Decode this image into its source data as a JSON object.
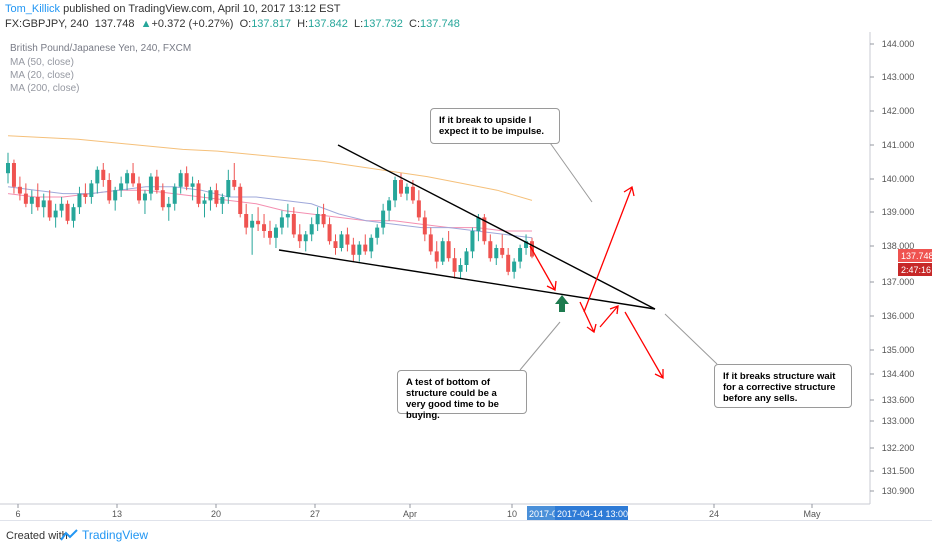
{
  "header": {
    "author": "Tom_Killick",
    "published_text": " published on TradingView.com, April 10, 2017 13:12 EST",
    "symbol": "FX:GBPJPY, 240",
    "last": "137.748",
    "change": "+0.372 (+0.27%)",
    "open_label": "O:",
    "open": "137.817",
    "high_label": "H:",
    "high": "137.842",
    "low_label": "L:",
    "low": "137.732",
    "close_label": "C:",
    "close": "137.748"
  },
  "legend": {
    "title": "British Pound/Japanese Yen, 240, FXCM",
    "ma50": "MA (50, close)",
    "ma20": "MA (20, close)",
    "ma200": "MA (200, close)"
  },
  "annotations": {
    "upside": "If it break to upside I expect it to be impulse.",
    "test": "A test of bottom of structure could be a very good time to be buying.",
    "breaks": "If it breaks structure wait for a corrective structure before any sells."
  },
  "price_labels": {
    "last_price": "137.748",
    "countdown": "2:47:16"
  },
  "crosshair": {
    "date_partial": "2017-0",
    "datetime": "2017-04-14 13:00:00"
  },
  "footer": {
    "created": "Created with",
    "brand": "TradingView"
  },
  "colors": {
    "up": "#26a69a",
    "down": "#ef5350",
    "ma50": "#f48fb1",
    "ma20": "#9fa8da",
    "ma200": "#f5c07a",
    "arrow": "#ff0000",
    "buy_arrow": "#1e7b4f",
    "accent": "#2196f3"
  },
  "chart_data": {
    "type": "candlestick",
    "instrument": "GBPJPY",
    "timeframe": "240",
    "y_range": [
      130.7,
      144.2
    ],
    "y_ticks": [
      "144.000",
      "143.000",
      "142.000",
      "141.000",
      "140.000",
      "139.000",
      "138.000",
      "137.000",
      "136.000",
      "135.000",
      "134.400",
      "133.600",
      "133.000",
      "132.200",
      "131.500",
      "130.900"
    ],
    "x_ticks": [
      "6",
      "13",
      "20",
      "27",
      "Apr",
      "10",
      "24",
      "May"
    ],
    "candles": [
      [
        140.2,
        140.8,
        139.9,
        140.5
      ],
      [
        140.5,
        140.6,
        139.6,
        139.8
      ],
      [
        139.8,
        140.1,
        139.4,
        139.6
      ],
      [
        139.6,
        139.9,
        139.2,
        139.3
      ],
      [
        139.3,
        139.7,
        139.0,
        139.5
      ],
      [
        139.5,
        139.9,
        139.1,
        139.2
      ],
      [
        139.2,
        139.6,
        138.9,
        139.4
      ],
      [
        139.4,
        139.7,
        138.8,
        138.9
      ],
      [
        138.9,
        139.3,
        138.6,
        139.1
      ],
      [
        139.1,
        139.5,
        138.9,
        139.3
      ],
      [
        139.3,
        139.4,
        138.7,
        138.8
      ],
      [
        138.8,
        139.3,
        138.6,
        139.2
      ],
      [
        139.2,
        139.8,
        139.0,
        139.6
      ],
      [
        139.6,
        139.9,
        139.3,
        139.5
      ],
      [
        139.5,
        140.0,
        139.3,
        139.9
      ],
      [
        139.9,
        140.4,
        139.6,
        140.3
      ],
      [
        140.3,
        140.5,
        139.8,
        140.0
      ],
      [
        140.0,
        140.2,
        139.3,
        139.4
      ],
      [
        139.4,
        139.8,
        139.1,
        139.7
      ],
      [
        139.7,
        140.1,
        139.5,
        139.9
      ],
      [
        139.9,
        140.3,
        139.7,
        140.2
      ],
      [
        140.2,
        140.5,
        139.8,
        139.9
      ],
      [
        139.9,
        140.1,
        139.3,
        139.4
      ],
      [
        139.4,
        139.7,
        139.0,
        139.6
      ],
      [
        139.6,
        140.2,
        139.4,
        140.1
      ],
      [
        140.1,
        140.3,
        139.6,
        139.7
      ],
      [
        139.7,
        139.9,
        139.1,
        139.2
      ],
      [
        139.2,
        139.5,
        138.8,
        139.3
      ],
      [
        139.3,
        139.9,
        139.1,
        139.8
      ],
      [
        139.8,
        140.3,
        139.6,
        140.2
      ],
      [
        140.2,
        140.4,
        139.7,
        139.8
      ],
      [
        139.8,
        140.1,
        139.4,
        139.9
      ],
      [
        139.9,
        140.0,
        139.2,
        139.3
      ],
      [
        139.3,
        139.6,
        138.9,
        139.4
      ],
      [
        139.4,
        139.8,
        139.1,
        139.7
      ],
      [
        139.7,
        139.9,
        139.2,
        139.3
      ],
      [
        139.3,
        139.6,
        139.0,
        139.5
      ],
      [
        139.5,
        140.3,
        139.3,
        140.0
      ],
      [
        140.0,
        140.5,
        139.7,
        139.8
      ],
      [
        139.8,
        139.9,
        138.9,
        139.0
      ],
      [
        139.0,
        139.3,
        138.4,
        138.6
      ],
      [
        138.6,
        139.0,
        137.8,
        138.8
      ],
      [
        138.8,
        139.2,
        138.5,
        138.7
      ],
      [
        138.7,
        139.0,
        138.3,
        138.5
      ],
      [
        138.5,
        138.8,
        138.1,
        138.3
      ],
      [
        138.3,
        138.7,
        138.0,
        138.6
      ],
      [
        138.6,
        139.1,
        138.4,
        138.9
      ],
      [
        138.9,
        139.3,
        138.6,
        139.0
      ],
      [
        139.0,
        139.2,
        138.3,
        138.4
      ],
      [
        138.4,
        138.7,
        138.0,
        138.2
      ],
      [
        138.2,
        138.5,
        137.9,
        138.4
      ],
      [
        138.4,
        138.9,
        138.2,
        138.7
      ],
      [
        138.7,
        139.2,
        138.5,
        139.0
      ],
      [
        139.0,
        139.3,
        138.6,
        138.7
      ],
      [
        138.7,
        138.9,
        138.1,
        138.2
      ],
      [
        138.2,
        138.4,
        137.8,
        138.0
      ],
      [
        138.0,
        138.5,
        137.9,
        138.4
      ],
      [
        138.4,
        138.6,
        137.9,
        138.1
      ],
      [
        138.1,
        138.3,
        137.6,
        137.8
      ],
      [
        137.8,
        138.2,
        137.6,
        138.1
      ],
      [
        138.1,
        138.4,
        137.8,
        137.9
      ],
      [
        137.9,
        138.4,
        137.7,
        138.3
      ],
      [
        138.3,
        138.7,
        138.1,
        138.6
      ],
      [
        138.6,
        139.3,
        138.4,
        139.1
      ],
      [
        139.1,
        139.5,
        138.8,
        139.4
      ],
      [
        139.4,
        140.1,
        139.2,
        140.0
      ],
      [
        140.0,
        140.2,
        139.5,
        139.6
      ],
      [
        139.6,
        139.9,
        139.4,
        139.8
      ],
      [
        139.8,
        140.0,
        139.3,
        139.4
      ],
      [
        139.4,
        139.7,
        138.8,
        138.9
      ],
      [
        138.9,
        139.1,
        138.2,
        138.4
      ],
      [
        138.4,
        138.6,
        137.8,
        137.9
      ],
      [
        137.9,
        138.2,
        137.4,
        137.6
      ],
      [
        137.6,
        138.3,
        137.5,
        138.2
      ],
      [
        138.2,
        138.5,
        137.6,
        137.7
      ],
      [
        137.7,
        138.0,
        137.1,
        137.3
      ],
      [
        137.3,
        137.7,
        137.1,
        137.5
      ],
      [
        137.5,
        138.0,
        137.3,
        137.9
      ],
      [
        137.9,
        138.6,
        137.7,
        138.5
      ],
      [
        138.5,
        139.0,
        138.2,
        138.9
      ],
      [
        138.9,
        139.0,
        138.1,
        138.2
      ],
      [
        138.2,
        138.4,
        137.6,
        137.7
      ],
      [
        137.7,
        138.1,
        137.5,
        138.0
      ],
      [
        138.0,
        138.4,
        137.7,
        137.8
      ],
      [
        137.8,
        138.0,
        137.2,
        137.3
      ],
      [
        137.3,
        137.7,
        137.1,
        137.6
      ],
      [
        137.6,
        138.1,
        137.4,
        138.0
      ],
      [
        138.0,
        138.4,
        137.8,
        138.2
      ],
      [
        138.2,
        138.3,
        137.7,
        137.748
      ]
    ],
    "ma20": [
      139.8,
      139.7,
      139.6,
      139.6,
      139.7,
      139.8,
      139.8,
      139.7,
      139.5,
      139.5,
      139.4,
      139.3,
      139.0,
      138.8,
      138.7,
      138.6,
      138.6,
      138.5,
      138.4,
      138.3
    ],
    "ma50": [
      139.6,
      139.5,
      139.5,
      139.6,
      139.7,
      139.7,
      139.6,
      139.5,
      139.4,
      139.3,
      139.1,
      139.0,
      138.9,
      138.8,
      138.8,
      138.7,
      138.6,
      138.6,
      138.5,
      138.5
    ],
    "ma200": [
      141.3,
      141.25,
      141.2,
      141.1,
      141.0,
      140.9,
      140.85,
      140.75,
      140.65,
      140.55,
      140.4,
      140.25,
      140.1,
      139.9,
      139.7,
      139.4
    ]
  }
}
